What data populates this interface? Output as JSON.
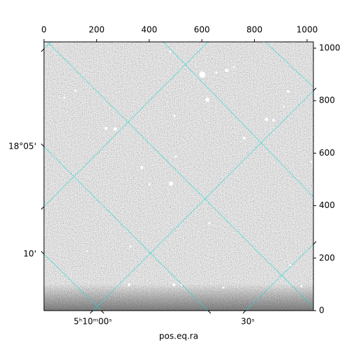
{
  "chart_data": {
    "type": "image",
    "xlabel": "pos.eq.ra",
    "xlim": [
      0,
      1024
    ],
    "ylim": [
      0,
      1024
    ],
    "xticks": [
      0,
      200,
      400,
      600,
      800,
      1000
    ],
    "yticks": [
      0,
      200,
      400,
      600,
      800,
      1000
    ],
    "ra_tick_labels": [
      "5ʰ10ᵐ00ˢ",
      "30ˢ"
    ],
    "dec_tick_labels": [
      "18°05'",
      "10'"
    ],
    "grid": true,
    "grid_color": "#1fd6d6"
  }
}
